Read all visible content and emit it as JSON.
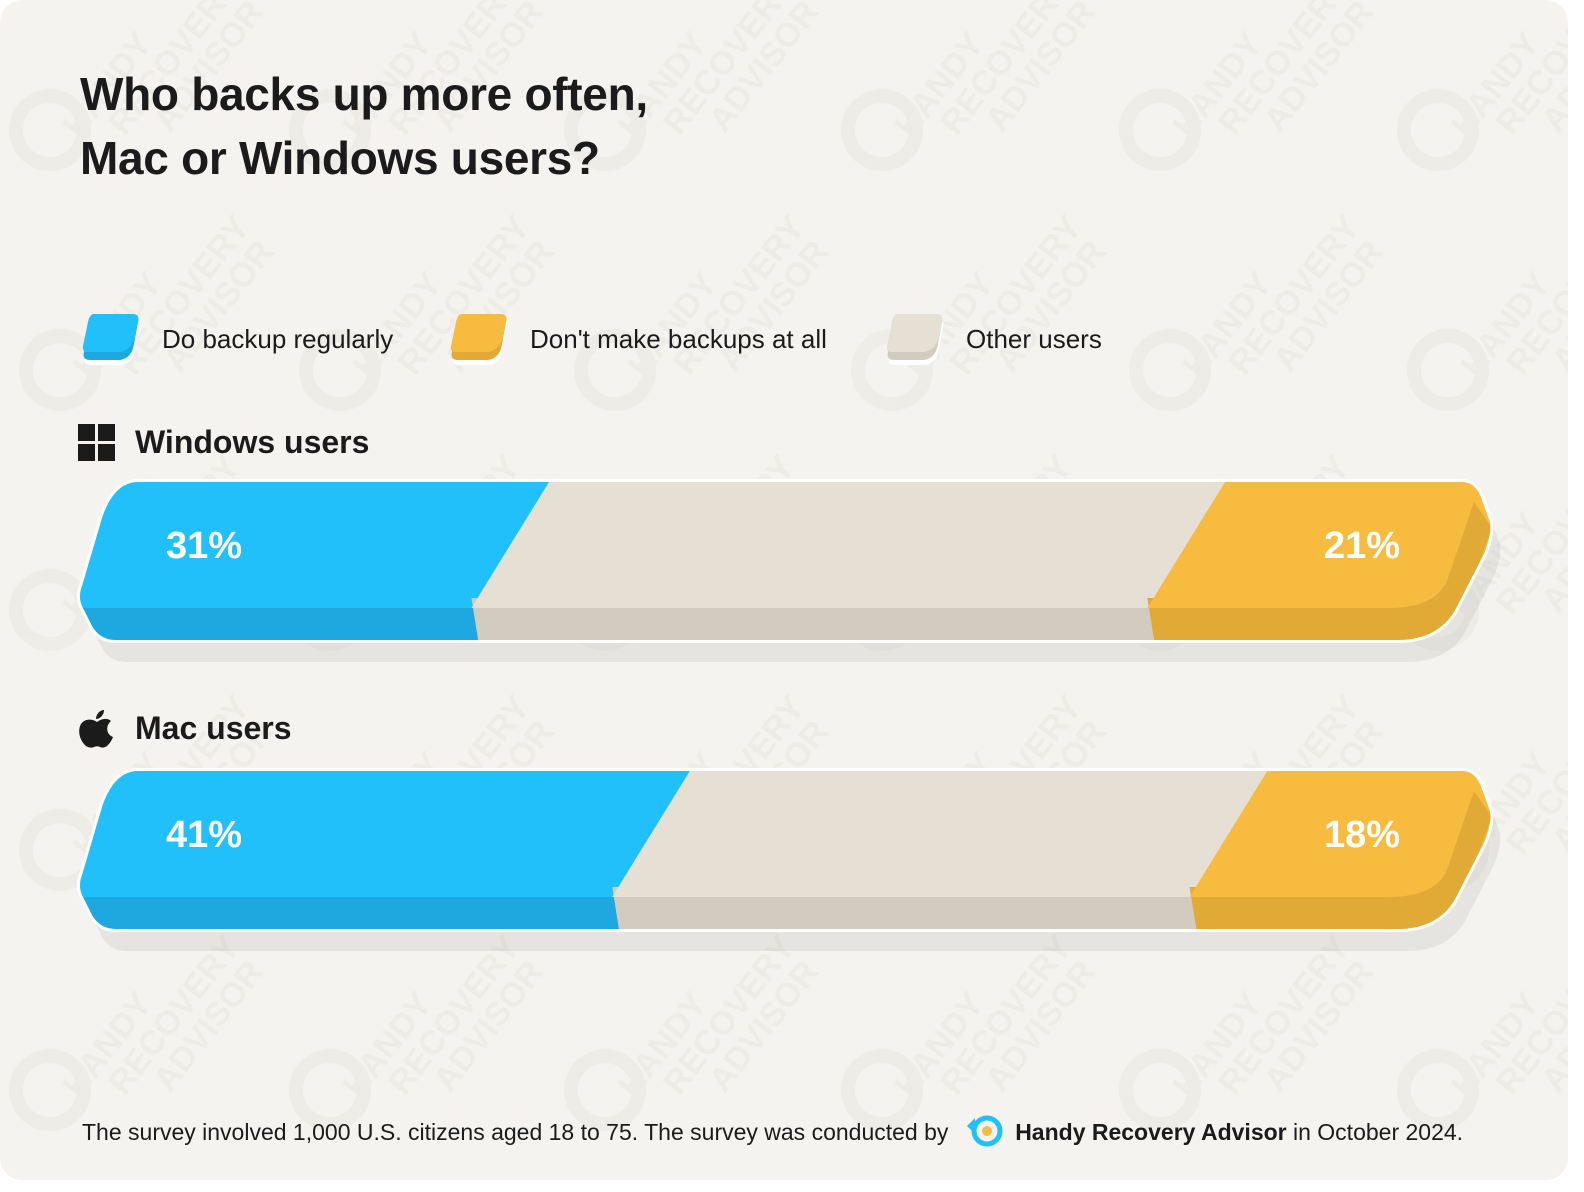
{
  "title": {
    "line1": "Who backs up more often,",
    "line2": "Mac or Windows users?"
  },
  "legend": [
    {
      "label": "Do backup regularly",
      "color": "#22c0fa"
    },
    {
      "label": "Don't make backups at all",
      "color": "#f7bc3f"
    },
    {
      "label": "Other users",
      "color": "#e6e0d4"
    }
  ],
  "groups": [
    {
      "icon": "windows-icon",
      "title": "Windows users"
    },
    {
      "icon": "apple-icon",
      "title": "Mac users"
    }
  ],
  "chart_data": {
    "type": "bar",
    "orientation": "horizontal-stacked",
    "categories": [
      "Windows users",
      "Mac users"
    ],
    "series": [
      {
        "name": "Do backup regularly",
        "values": [
          31,
          41
        ],
        "labels": [
          "31%",
          "41%"
        ],
        "color": "#22c0fa"
      },
      {
        "name": "Other users",
        "values": [
          48,
          41
        ],
        "color": "#e6e0d4"
      },
      {
        "name": "Don't make backups at all",
        "values": [
          21,
          18
        ],
        "labels": [
          "21%",
          "18%"
        ],
        "color": "#f7bc3f"
      }
    ],
    "unit": "%",
    "xlim": [
      0,
      100
    ],
    "legend": "top",
    "grid": false
  },
  "watermark": {
    "lines": [
      "HANDY",
      "RECOVERY",
      "ADVISOR"
    ]
  },
  "footnote": {
    "text_before": "The survey involved 1,000 U.S. citizens aged 18 to 75. The survey was conducted by",
    "brand": "Handy Recovery Advisor",
    "text_after": " in October 2024."
  },
  "colors": {
    "background": "#f4f3ef",
    "text": "#1b1b1b",
    "blue": "#22c0fa",
    "blue_dark": "#1fa8df",
    "yellow": "#f7bc3f",
    "yellow_dark": "#e1a935",
    "beige": "#e6e0d4",
    "beige_dark": "#d2cbc0"
  }
}
